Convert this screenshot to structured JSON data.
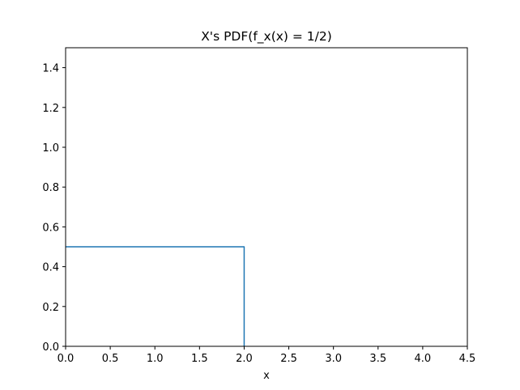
{
  "chart_data": {
    "type": "line",
    "title": "X's PDF(f_x(x) = 1/2)",
    "xlabel": "x",
    "ylabel": "",
    "xlim": [
      0,
      4.5
    ],
    "ylim": [
      0,
      1.5
    ],
    "xticks": [
      0,
      0.5,
      1,
      1.5,
      2,
      2.5,
      3,
      3.5,
      4,
      4.5
    ],
    "xtick_labels": [
      "0.0",
      "0.5",
      "1.0",
      "1.5",
      "2.0",
      "2.5",
      "3.0",
      "3.5",
      "4.0",
      "4.5"
    ],
    "yticks": [
      0,
      0.2,
      0.4,
      0.6,
      0.8,
      1,
      1.2,
      1.4
    ],
    "ytick_labels": [
      "0.0",
      "0.2",
      "0.4",
      "0.6",
      "0.8",
      "1.0",
      "1.2",
      "1.4"
    ],
    "grid": false,
    "legend": "none",
    "series": [
      {
        "color": "#1f77b4",
        "x": [
          0,
          2,
          2
        ],
        "y": [
          0.5,
          0.5,
          0
        ]
      }
    ]
  }
}
